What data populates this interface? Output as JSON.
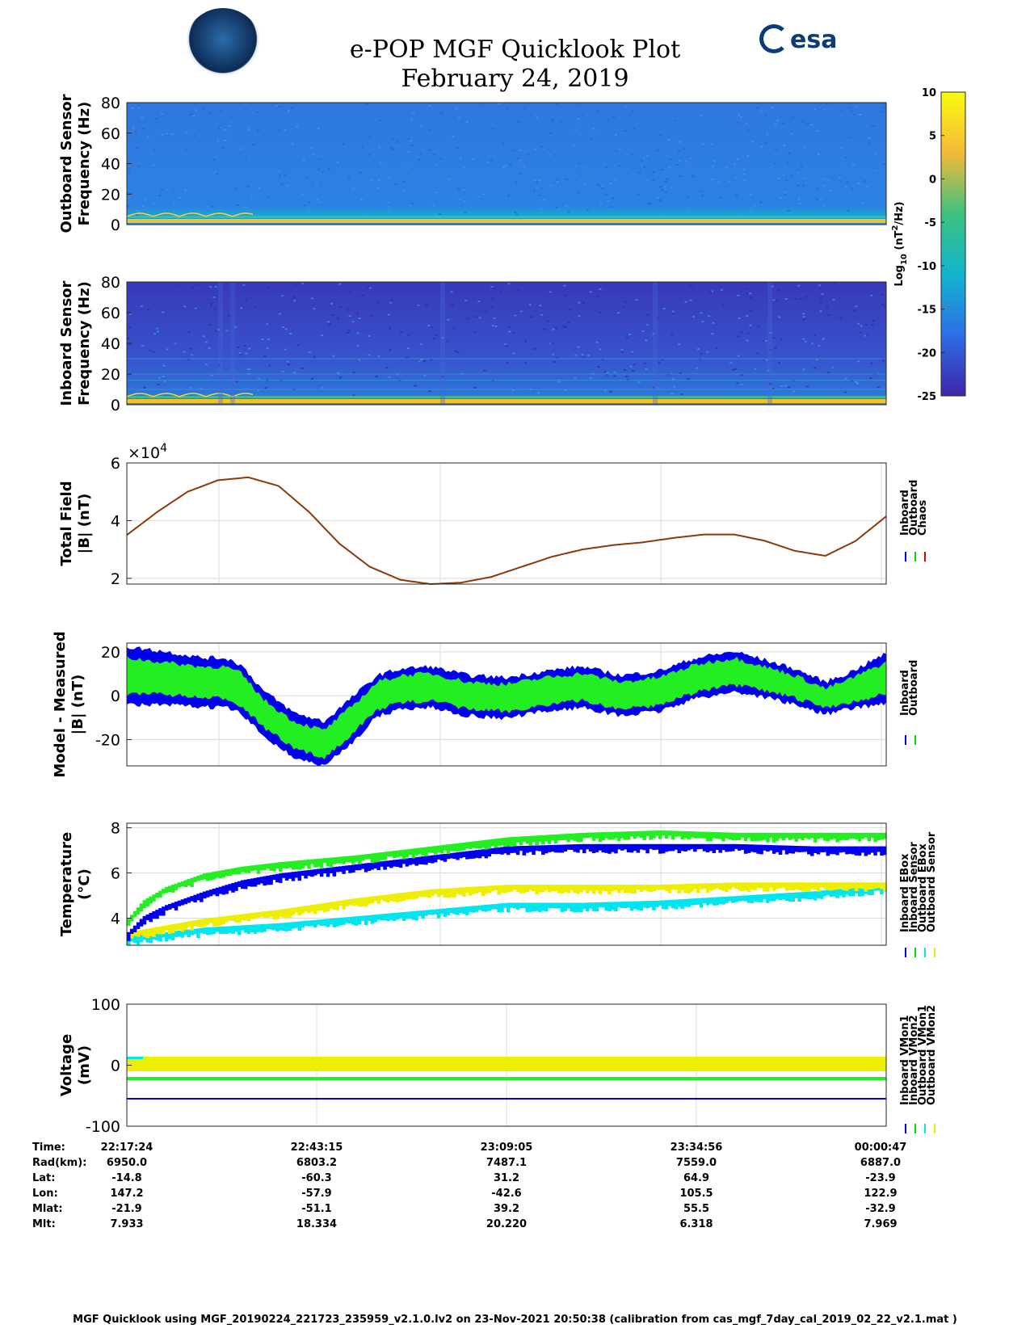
{
  "title": {
    "line1": "e-POP MGF Quicklook Plot",
    "line2": "February 24, 2019"
  },
  "logos": {
    "left": "cassiope-logo",
    "right_text": "esa"
  },
  "colorbar": {
    "ticks": [
      10,
      5,
      0,
      -5,
      -10,
      -15,
      -20,
      -25
    ],
    "label": "Log10 (nT2/Hz)",
    "label_base": "Log",
    "label_sub": "10",
    "label_unit": " (nT",
    "label_sup": "2",
    "label_end": "/Hz)"
  },
  "footer": "MGF Quicklook using MGF_20190224_221723_235959_v2.1.0.lv2 on 23-Nov-2021 20:50:38 (calibration from cas_mgf_7day_cal_2019_02_22_v2.1.mat )",
  "info_table": {
    "row_labels": [
      "Time:",
      "Rad(km):",
      "Lat:",
      "Lon:",
      "Mlat:",
      "Mlt:"
    ],
    "columns": [
      [
        "22:17:24",
        "6950.0",
        "-14.8",
        "147.2",
        "-21.9",
        "7.933"
      ],
      [
        "22:43:15",
        "6803.2",
        "-60.3",
        "-57.9",
        "-51.1",
        "18.334"
      ],
      [
        "23:09:05",
        "7487.1",
        "31.2",
        "-42.6",
        "39.2",
        "20.220"
      ],
      [
        "23:34:56",
        "7559.0",
        "64.9",
        "105.5",
        "55.5",
        "6.318"
      ],
      [
        "00:00:47",
        "6887.0",
        "-23.9",
        "122.9",
        "-32.9",
        "7.969"
      ]
    ]
  },
  "chart_data": [
    {
      "type": "heatmap",
      "ylabel_lines": [
        "Outboard Sensor",
        "Frequency (Hz)"
      ],
      "ylim": [
        0,
        80
      ],
      "yticks": [
        80,
        60,
        40,
        20,
        0
      ],
      "colors": {
        "background": "#2a7ce0",
        "low_band": "#f2c12e"
      }
    },
    {
      "type": "heatmap",
      "ylabel_lines": [
        "Inboard Sensor",
        "Frequency (Hz)"
      ],
      "ylim": [
        0,
        80
      ],
      "yticks": [
        80,
        60,
        40,
        20,
        0
      ],
      "colors": {
        "background": "#3340c0",
        "low_band": "#f2c12e"
      }
    },
    {
      "type": "line",
      "ylabel_lines": [
        "Total Field",
        "|B| (nT)"
      ],
      "ylim": [
        1.8,
        6
      ],
      "yticks": [
        6,
        4,
        2
      ],
      "multiplier": "×10",
      "multiplier_exp": "4",
      "legend": [
        "Inboard",
        "Outboard",
        "Chaos"
      ],
      "legend_colors": [
        "#0000dd",
        "#00dd00",
        "#dd0000"
      ],
      "series": [
        {
          "name": "Chaos",
          "x": [
            0,
            0.04,
            0.08,
            0.12,
            0.16,
            0.2,
            0.24,
            0.28,
            0.32,
            0.36,
            0.4,
            0.44,
            0.48,
            0.52,
            0.56,
            0.6,
            0.64,
            0.68,
            0.72,
            0.76,
            0.8,
            0.84,
            0.88,
            0.92,
            0.96,
            1.0
          ],
          "values": [
            3.5,
            4.3,
            5.0,
            5.4,
            5.5,
            5.2,
            4.3,
            3.2,
            2.4,
            1.95,
            1.8,
            1.85,
            2.05,
            2.4,
            2.75,
            3.0,
            3.15,
            3.25,
            3.4,
            3.52,
            3.52,
            3.3,
            2.95,
            2.78,
            3.3,
            4.15
          ]
        }
      ]
    },
    {
      "type": "line",
      "ylabel_lines": [
        "Model - Measured",
        "|B| (nT)"
      ],
      "ylim": [
        -32,
        24
      ],
      "yticks": [
        20,
        0,
        -20
      ],
      "legend": [
        "Inboard",
        "Outboard"
      ],
      "legend_colors": [
        "#0000dd",
        "#00dd00"
      ],
      "series": [
        {
          "name": "Inboard",
          "x": [
            0,
            0.05,
            0.1,
            0.13,
            0.15,
            0.18,
            0.22,
            0.26,
            0.3,
            0.33,
            0.36,
            0.4,
            0.45,
            0.5,
            0.55,
            0.6,
            0.65,
            0.7,
            0.75,
            0.8,
            0.85,
            0.88,
            0.92,
            0.95,
            1.0
          ],
          "center": [
            9,
            8,
            6,
            6,
            3,
            -8,
            -18,
            -22,
            -10,
            0,
            3,
            4,
            0,
            -1,
            2,
            4,
            0,
            2,
            8,
            11,
            7,
            4,
            -1,
            2,
            8
          ],
          "halfwidth": [
            13,
            12,
            11,
            11,
            11,
            10,
            10,
            10,
            10,
            9,
            9,
            9,
            9,
            9,
            9,
            9,
            9,
            9,
            9,
            9,
            8,
            8,
            7,
            8,
            11
          ]
        },
        {
          "name": "Outboard",
          "x": [
            0,
            0.05,
            0.1,
            0.13,
            0.15,
            0.18,
            0.22,
            0.26,
            0.3,
            0.33,
            0.36,
            0.4,
            0.45,
            0.5,
            0.55,
            0.6,
            0.65,
            0.7,
            0.75,
            0.8,
            0.85,
            0.88,
            0.92,
            0.95,
            1.0
          ],
          "center": [
            9,
            8,
            6,
            6,
            3,
            -8,
            -18,
            -22,
            -10,
            0,
            3,
            4,
            0,
            -1,
            2,
            4,
            0,
            2,
            8,
            11,
            7,
            4,
            -1,
            2,
            8
          ],
          "halfwidth": [
            8,
            7,
            7,
            7,
            7,
            6,
            6,
            6,
            6,
            6,
            6,
            6,
            6,
            6,
            6,
            6,
            6,
            6,
            6,
            6,
            5,
            5,
            4,
            5,
            7
          ]
        }
      ]
    },
    {
      "type": "line",
      "ylabel_lines": [
        "Temperature",
        "(°C)"
      ],
      "ylim": [
        2.8,
        8.2
      ],
      "yticks": [
        8,
        6,
        4
      ],
      "legend": [
        "Inboard EBox",
        "Inboard Sensor",
        "Outboard EBox",
        "Outboard Sensor"
      ],
      "legend_colors": [
        "#0000dd",
        "#00dd00",
        "#00e5ee",
        "#eeee00"
      ],
      "series": [
        {
          "name": "Inboard EBox",
          "x": [
            0,
            0.02,
            0.05,
            0.1,
            0.15,
            0.2,
            0.3,
            0.4,
            0.5,
            0.6,
            0.7,
            0.8,
            0.9,
            1.0
          ],
          "values": [
            3.2,
            3.9,
            4.4,
            5.0,
            5.5,
            5.8,
            6.2,
            6.6,
            7.0,
            7.1,
            7.1,
            7.1,
            7.0,
            7.0
          ]
        },
        {
          "name": "Inboard Sensor",
          "x": [
            0,
            0.02,
            0.05,
            0.1,
            0.15,
            0.2,
            0.3,
            0.4,
            0.5,
            0.6,
            0.7,
            0.8,
            0.9,
            1.0
          ],
          "values": [
            3.8,
            4.6,
            5.2,
            5.8,
            6.1,
            6.3,
            6.6,
            7.0,
            7.4,
            7.6,
            7.7,
            7.6,
            7.6,
            7.6
          ]
        },
        {
          "name": "Outboard EBox",
          "x": [
            0,
            0.05,
            0.1,
            0.2,
            0.3,
            0.4,
            0.5,
            0.6,
            0.7,
            0.8,
            0.9,
            1.0
          ],
          "values": [
            3.0,
            3.2,
            3.4,
            3.6,
            3.9,
            4.2,
            4.5,
            4.5,
            4.6,
            4.8,
            5.0,
            5.3
          ]
        },
        {
          "name": "Outboard Sensor",
          "x": [
            0,
            0.05,
            0.1,
            0.2,
            0.3,
            0.4,
            0.5,
            0.6,
            0.7,
            0.8,
            0.9,
            1.0
          ],
          "values": [
            3.2,
            3.5,
            3.8,
            4.2,
            4.7,
            5.1,
            5.3,
            5.3,
            5.3,
            5.4,
            5.4,
            5.4
          ]
        }
      ]
    },
    {
      "type": "line",
      "ylabel_lines": [
        "Voltage",
        "(mV)"
      ],
      "ylim": [
        -100,
        100
      ],
      "yticks": [
        100,
        0,
        -100
      ],
      "legend": [
        "Inboard VMon1",
        "Inboard VMon2",
        "Outboard VMon1",
        "Outboard VMon2"
      ],
      "legend_colors": [
        "#0000dd",
        "#00dd00",
        "#00e5ee",
        "#eeee00"
      ],
      "series": [
        {
          "name": "Inboard VMon1",
          "x": [
            0,
            1
          ],
          "values": [
            -55,
            -55
          ]
        },
        {
          "name": "Inboard VMon2",
          "x": [
            0,
            1
          ],
          "values": [
            -22,
            -22
          ]
        },
        {
          "name": "Outboard VMon1",
          "x": [
            0,
            1
          ],
          "values": [
            12,
            12
          ]
        },
        {
          "name": "Outboard VMon2",
          "x": [
            0,
            1
          ],
          "values": [
            2,
            2
          ]
        }
      ]
    }
  ]
}
